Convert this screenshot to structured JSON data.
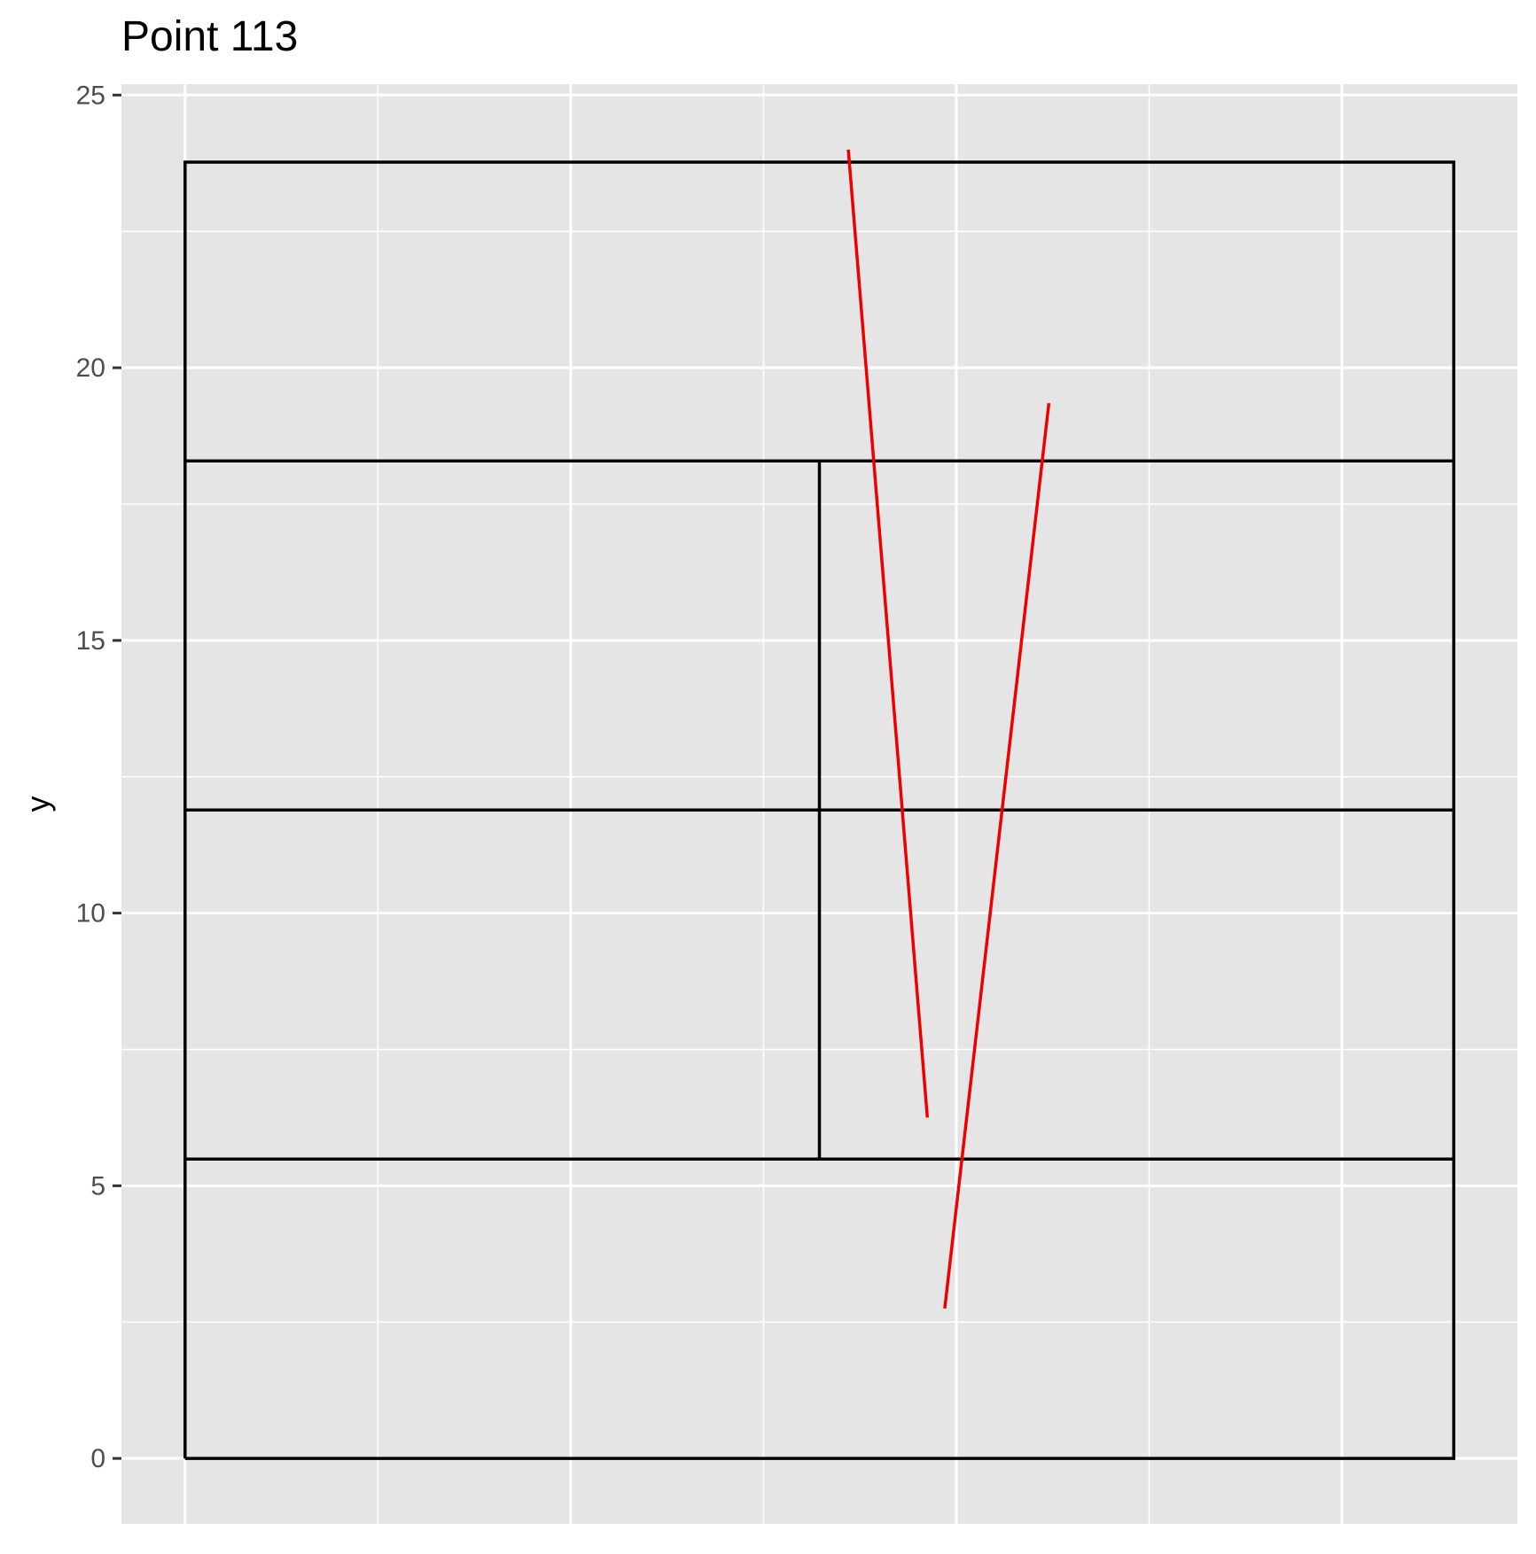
{
  "chart_data": {
    "type": "line",
    "title": "Point 113",
    "xlabel": "",
    "ylabel": "y",
    "xlim": [
      -1.65,
      34.55
    ],
    "ylim": [
      -1.2,
      25.2
    ],
    "y_ticks": [
      "0",
      "5",
      "10",
      "15",
      "20",
      "25"
    ],
    "grid": true,
    "background_color": "#E5E5E5",
    "grid_color": "#FFFFFF",
    "court_color": "#000000",
    "trajectory_color": "#EE0000",
    "court_lines": [
      {
        "name": "outer-boundary",
        "x": [
          0,
          32.9,
          32.9,
          0,
          0
        ],
        "y": [
          0,
          0,
          23.77,
          23.77,
          0
        ]
      },
      {
        "name": "far-baseline-service-line",
        "x": [
          0,
          32.9
        ],
        "y": [
          18.29,
          18.29
        ]
      },
      {
        "name": "net-line",
        "x": [
          0,
          32.9
        ],
        "y": [
          11.89,
          11.89
        ]
      },
      {
        "name": "near-service-line",
        "x": [
          0,
          32.9
        ],
        "y": [
          5.49,
          5.49
        ]
      },
      {
        "name": "center-service-line",
        "x": [
          16.45,
          16.45
        ],
        "y": [
          5.49,
          18.29
        ]
      }
    ],
    "series": [
      {
        "x": [
          17.2,
          19.25
        ],
        "y": [
          24.0,
          6.25
        ]
      },
      {
        "x": [
          19.7,
          22.4
        ],
        "y": [
          2.75,
          19.35
        ]
      }
    ]
  }
}
